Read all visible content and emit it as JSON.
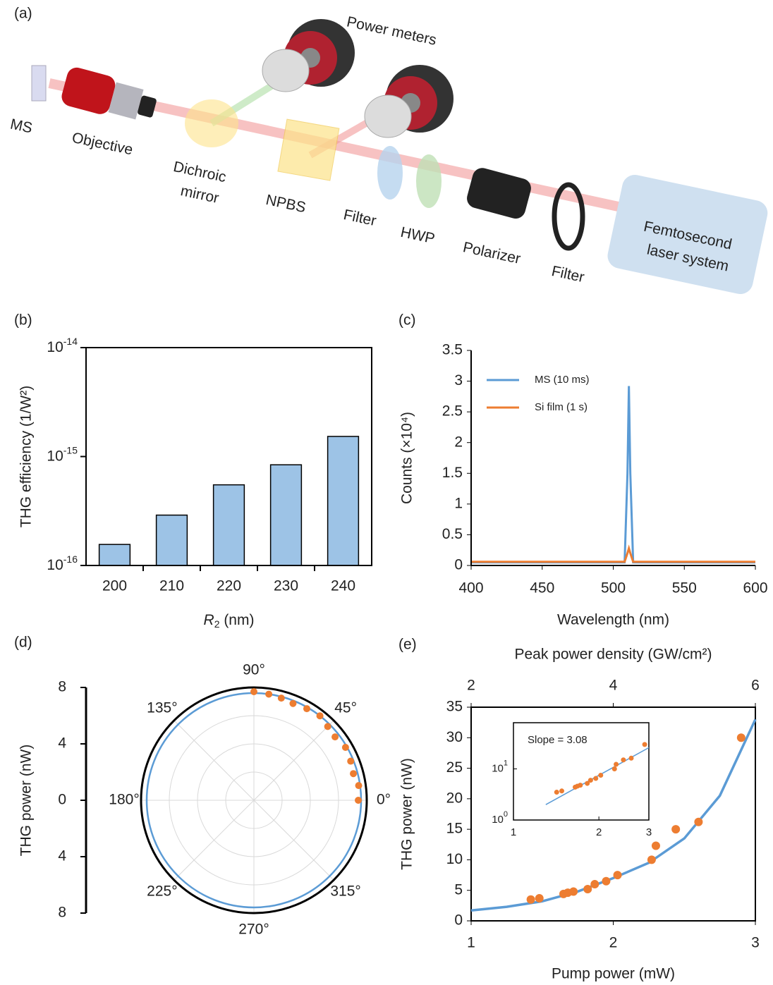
{
  "diagram": {
    "panel_label": "(a)",
    "labels": [
      [
        "Power meters"
      ],
      [
        "MS"
      ],
      [
        "Objective"
      ],
      [
        "Dichroic",
        "mirror"
      ],
      [
        "NPBS"
      ],
      [
        "Filter"
      ],
      [
        "HWP"
      ],
      [
        "Polarizer"
      ],
      [
        "Filter"
      ],
      [
        "Femtosecond",
        "laser system"
      ]
    ]
  },
  "chart_data": [
    {
      "type": "bar",
      "panel_label": "(b)",
      "categories": [
        "200",
        "210",
        "220",
        "230",
        "240"
      ],
      "values": [
        1.56e-16,
        2.9e-16,
        5.5e-16,
        8.4e-16,
        1.53e-15
      ],
      "color": "#9dc3e6",
      "log_y": true,
      "ylim": [
        1e-16,
        1e-14
      ],
      "yticks": [
        {
          "value": 1e-16,
          "label": "10",
          "exponent": "-16"
        },
        {
          "value": 1e-15,
          "label": "10",
          "exponent": "-15"
        },
        {
          "value": 1e-14,
          "label": "10",
          "exponent": "-14"
        }
      ],
      "xlabel": [
        "R",
        "2",
        " (nm)"
      ],
      "ylabel": "THG efficiency (1/W²)"
    },
    {
      "type": "line",
      "panel_label": "(c)",
      "x": [
        400,
        450,
        500,
        505,
        508,
        510,
        511,
        512,
        514,
        517,
        520,
        550,
        600
      ],
      "series": [
        {
          "name": "MS (10 ms)",
          "color": "#5b9bd5",
          "values": [
            0.05,
            0.05,
            0.05,
            0.05,
            0.05,
            1.5,
            2.92,
            1.5,
            0.05,
            0.05,
            0.05,
            0.05,
            0.05
          ]
        },
        {
          "name": "Si film (1 s)",
          "color": "#ed7d31",
          "values": [
            0.06,
            0.06,
            0.06,
            0.06,
            0.06,
            0.2,
            0.28,
            0.2,
            0.06,
            0.06,
            0.06,
            0.06,
            0.06
          ]
        }
      ],
      "xlim": [
        400,
        600
      ],
      "xticks": [
        400,
        450,
        500,
        550,
        600
      ],
      "ylim": [
        0,
        3.5
      ],
      "yticks": [
        0,
        0.5,
        1,
        1.5,
        2,
        2.5,
        3,
        3.5
      ],
      "xlabel": "Wavelength (nm)",
      "ylabel": "Counts (×10⁴)",
      "legend": "upper-left"
    },
    {
      "type": "polar",
      "panel_label": "(d)",
      "ylabel": "THG power (nW)",
      "ylim": [
        -8,
        8
      ],
      "yticks": [
        8,
        4,
        0,
        {
          "value": -4,
          "label": "4"
        },
        {
          "value": -8,
          "label": "8"
        }
      ],
      "rlim": [
        0,
        8
      ],
      "rgrid": [
        2,
        4,
        6
      ],
      "angle_ticks": [
        {
          "value": 0,
          "label": "0°"
        },
        {
          "value": 45,
          "label": "45°"
        },
        {
          "value": 90,
          "label": "90°"
        },
        {
          "value": 135,
          "label": "135°"
        },
        {
          "value": 180,
          "label": "180°"
        },
        {
          "value": 225,
          "label": "225°"
        },
        {
          "value": 270,
          "label": "270°"
        },
        {
          "value": 315,
          "label": "315°"
        }
      ],
      "points": {
        "color": "#ed7d31",
        "theta": [
          0,
          8,
          15,
          22,
          30,
          38,
          45,
          52,
          60,
          68,
          75,
          82,
          90
        ],
        "r": [
          7.4,
          7.5,
          7.3,
          7.4,
          7.5,
          7.3,
          7.4,
          7.6,
          7.5,
          7.4,
          7.5,
          7.6,
          7.7
        ]
      },
      "fit": {
        "r": 7.6,
        "color": "#5b9bd5"
      }
    },
    {
      "type": "scatter",
      "panel_label": "(e)",
      "x": [
        1.42,
        1.48,
        1.65,
        1.68,
        1.72,
        1.82,
        1.87,
        1.95,
        2.03,
        2.27,
        2.3,
        2.44,
        2.6,
        2.9
      ],
      "values": [
        3.5,
        3.7,
        4.4,
        4.6,
        4.8,
        5.2,
        6.0,
        6.5,
        7.5,
        10,
        12.3,
        15,
        16.2,
        30
      ],
      "color": "#ed7d31",
      "fit": {
        "color": "#5b9bd5",
        "x": [
          1,
          1.25,
          1.5,
          1.75,
          2,
          2.25,
          2.5,
          2.75,
          2.9,
          3
        ],
        "values": [
          1.7,
          2.3,
          3.2,
          4.8,
          7.0,
          9.5,
          13.5,
          20.5,
          28,
          33
        ]
      },
      "xlim": [
        1,
        3
      ],
      "xticks": [
        1,
        2,
        3
      ],
      "ylim": [
        0,
        35
      ],
      "yticks": [
        0,
        5,
        10,
        15,
        20,
        25,
        30,
        35
      ],
      "x2lim": [
        2,
        6
      ],
      "x2ticks": [
        2,
        4,
        6
      ],
      "x2label": "Peak power density (GW/cm²)",
      "xlabel": "Pump power (mW)",
      "ylabel": "THG power (nW)",
      "inset": {
        "type": "scatter",
        "log_x": true,
        "log_y": true,
        "xlim": [
          1,
          3
        ],
        "xticks": [
          1,
          2,
          3
        ],
        "ylim": [
          1,
          80
        ],
        "yticks": [
          {
            "value": 1,
            "label": "10",
            "exponent": "0"
          },
          {
            "value": 10,
            "label": "10",
            "exponent": "1"
          }
        ],
        "x": [
          1.42,
          1.48,
          1.65,
          1.68,
          1.72,
          1.82,
          1.87,
          1.95,
          2.03,
          2.27,
          2.3,
          2.44,
          2.6,
          2.9
        ],
        "values": [
          3.5,
          3.7,
          4.4,
          4.6,
          4.8,
          5.2,
          6.0,
          6.5,
          7.5,
          10,
          12.3,
          15,
          16.2,
          30
        ],
        "fit": {
          "x": [
            1.3,
            3
          ],
          "values": [
            2,
            26
          ]
        },
        "annotation": "Slope = 3.08"
      }
    }
  ]
}
